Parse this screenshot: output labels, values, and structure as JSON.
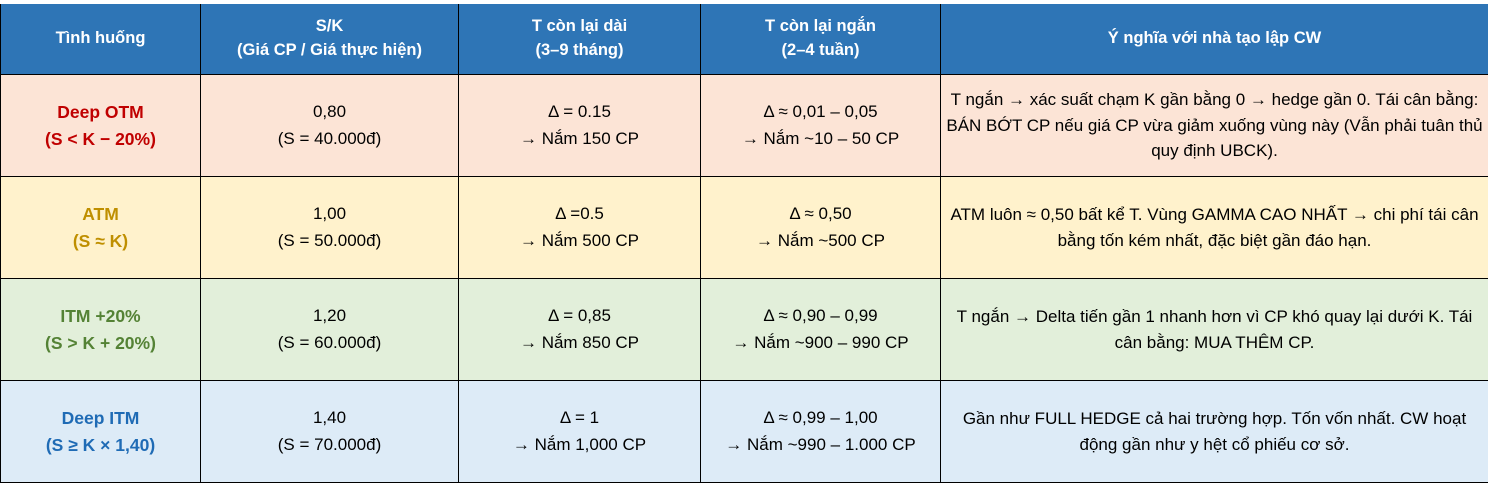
{
  "colors": {
    "header_bg": "#2E75B6",
    "header_text": "#FFFFFF",
    "border": "#000000",
    "body_text": "#000000"
  },
  "header": {
    "situation": "Tình huống",
    "sk_line1": "S/K",
    "sk_line2": "(Giá CP / Giá thực hiện)",
    "long_line1": "T còn lại dài",
    "long_line2": "(3–9 tháng)",
    "short_line1": "T còn lại ngắn",
    "short_line2": "(2–4 tuần)",
    "meaning": "Ý nghĩa với nhà tạo lập CW"
  },
  "rows": [
    {
      "situation_title": "Deep OTM",
      "situation_sub": "(S < K − 20%)",
      "sk_value": "0,80",
      "sk_sub": "(S = 40.000đ)",
      "long_delta": "Δ = 0.15",
      "long_hold": "→ Nắm 150 CP",
      "short_delta": "Δ ≈ 0,01 – 0,05",
      "short_hold": "→ Nắm ~10 – 50 CP",
      "meaning": "T ngắn → xác suất chạm K gần bằng 0 → hedge gần 0. Tái cân bằng: BÁN BỚT CP nếu giá CP vừa giảm xuống vùng này (Vẫn phải tuân thủ quy định UBCK).",
      "accent_color": "#C00000",
      "bg_color": "#FCE4D6"
    },
    {
      "situation_title": "ATM",
      "situation_sub": "(S ≈ K)",
      "sk_value": "1,00",
      "sk_sub": "(S = 50.000đ)",
      "long_delta": "Δ =0.5",
      "long_hold": "→ Nắm 500 CP",
      "short_delta": "Δ ≈ 0,50",
      "short_hold": "→ Nắm ~500 CP",
      "meaning": "ATM luôn ≈ 0,50 bất kể T. Vùng GAMMA CAO NHẤT → chi phí tái cân bằng tốn kém nhất, đặc biệt gần đáo hạn.",
      "accent_color": "#BF8F00",
      "bg_color": "#FFF2CC"
    },
    {
      "situation_title": "ITM +20%",
      "situation_sub": "(S > K + 20%)",
      "sk_value": "1,20",
      "sk_sub": "(S = 60.000đ)",
      "long_delta": "Δ = 0,85",
      "long_hold": "→ Nắm 850 CP",
      "short_delta": "Δ ≈ 0,90 – 0,99",
      "short_hold": "→ Nắm ~900 – 990 CP",
      "meaning": "T ngắn → Delta tiến gần 1 nhanh hơn vì CP khó quay lại dưới K. Tái cân bằng: MUA THÊM CP.",
      "accent_color": "#548235",
      "bg_color": "#E2EFDA"
    },
    {
      "situation_title": "Deep ITM",
      "situation_sub": "(S ≥ K × 1,40)",
      "sk_value": "1,40",
      "sk_sub": "(S = 70.000đ)",
      "long_delta": "Δ = 1",
      "long_hold": "→ Nắm 1,000 CP",
      "short_delta": "Δ ≈ 0,99 – 1,00",
      "short_hold": "→ Nắm ~990 – 1.000 CP",
      "meaning": "Gần như FULL HEDGE cả hai trường hợp. Tốn vốn nhất. CW hoạt động gần như y hệt cổ phiếu cơ sở.",
      "accent_color": "#1F6BB5",
      "bg_color": "#DDEBF7"
    }
  ]
}
